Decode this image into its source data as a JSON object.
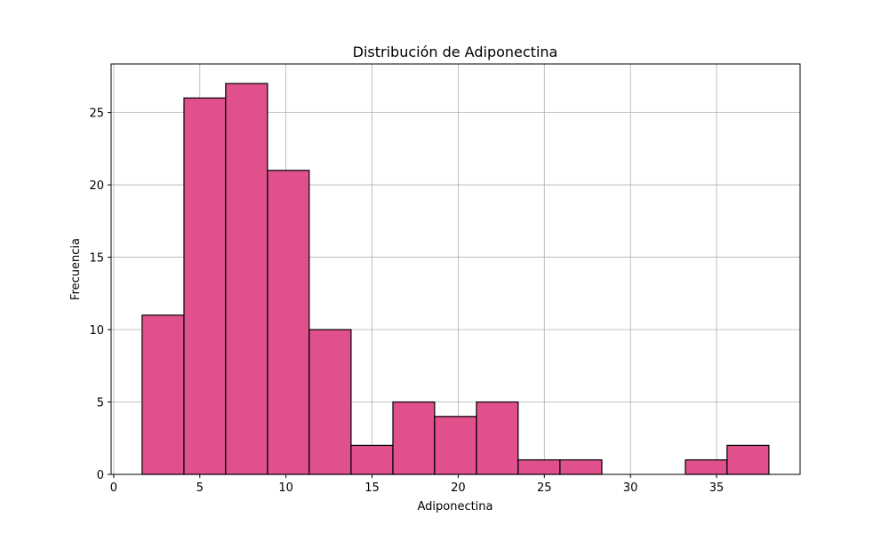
{
  "chart_data": {
    "type": "histogram",
    "title": "Distribución de Adiponectina",
    "x_label": "Adiponectina",
    "y_label": "Frecuencia",
    "bins": [
      1.65,
      4.08,
      6.5,
      8.93,
      11.35,
      13.78,
      16.21,
      18.63,
      21.06,
      23.48,
      25.91,
      28.34,
      30.76,
      33.19,
      35.61,
      38.04
    ],
    "counts": [
      11,
      26,
      27,
      21,
      10,
      2,
      5,
      4,
      5,
      1,
      1,
      0,
      0,
      1,
      2
    ],
    "color": "#e0508c",
    "edge_color": "#000000",
    "xlim": [
      -0.15,
      39.85
    ],
    "xticks": [
      0,
      5,
      10,
      15,
      20,
      25,
      30,
      35
    ],
    "ylim": [
      0,
      28.35
    ],
    "yticks": [
      0,
      5,
      10,
      15,
      20,
      25
    ],
    "grid": true
  }
}
